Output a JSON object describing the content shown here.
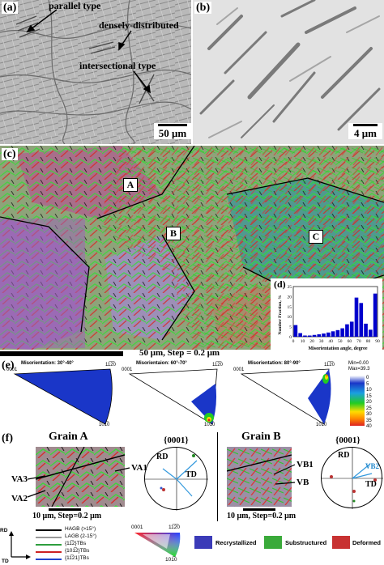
{
  "panel_a": {
    "label": "(a)",
    "annotations": [
      "parallel type",
      "densely-distributed",
      "intersectional type"
    ],
    "scale": "50 μm"
  },
  "panel_b": {
    "label": "(b)",
    "scale": "4 μm"
  },
  "panel_c": {
    "label": "(c)",
    "regions": [
      "A",
      "B",
      "C"
    ],
    "scale": "50 μm, Step = 0.2 μm"
  },
  "panel_d": {
    "label": "(d)",
    "chart_data": {
      "type": "bar",
      "xlabel": "Misorientation angle, degree",
      "ylabel": "Number Fraction, %",
      "x_ticks": [
        0,
        10,
        20,
        30,
        40,
        50,
        60,
        70,
        80,
        90
      ],
      "y_ticks": [
        0,
        5,
        10,
        15,
        20,
        25
      ],
      "ylim": [
        0,
        25
      ],
      "xlim": [
        0,
        90
      ],
      "color": "#0000cc",
      "bins": [
        5,
        10,
        15,
        20,
        25,
        30,
        35,
        40,
        45,
        50,
        55,
        60,
        65,
        70,
        75,
        80,
        85,
        90
      ],
      "values": [
        5.8,
        1.8,
        0.6,
        0.6,
        0.9,
        1.2,
        1.6,
        2.1,
        2.7,
        3.3,
        4.2,
        6.2,
        7.5,
        19.5,
        16.8,
        6.5,
        3.5,
        21.5
      ]
    }
  },
  "panel_e": {
    "label": "(e)",
    "plots": [
      {
        "title": "Misorientation: 30°-40°",
        "c0001": "0001",
        "c1120": "11̅2̅0",
        "c1010": "101̅0"
      },
      {
        "title": "Misorientaion: 60°-70°",
        "c0001": "0001",
        "c1120": "11̅2̅0",
        "c1010": "101̅0"
      },
      {
        "title": "Misorientation: 80°-90°",
        "c0001": "0001",
        "c1120": "11̅2̅0",
        "c1010": "101̅0"
      }
    ],
    "colorbar": {
      "min_label": "Min=0.00",
      "max_label": "Max=39.3",
      "ticks": [
        "0",
        "5",
        "10",
        "15",
        "20",
        "25",
        "30",
        "35",
        "40"
      ]
    }
  },
  "panel_f": {
    "label": "(f)",
    "grain_a": {
      "title": "Grain A",
      "pole_title": "{0001}",
      "variants": [
        "VA1",
        "VA2",
        "VA3"
      ],
      "rd": "RD",
      "td": "TD",
      "scale": "10 μm, Step=0.2 μm"
    },
    "grain_b": {
      "title": "Grain B",
      "pole_title": "{0001}",
      "variants": [
        "VB1",
        "VB2",
        "VB"
      ],
      "rd": "RD",
      "td": "TD",
      "scale": "10 μm, Step=0.2 μm"
    }
  },
  "legend": {
    "axis_rd": "RD",
    "axis_td": "TD",
    "lines": [
      {
        "label": "HAGB (>15°)",
        "color": "#000000"
      },
      {
        "label": "LAGB (2-15°)",
        "color": "#999999"
      },
      {
        "label": "{11̅2}TBs",
        "color": "#2e9e3e"
      },
      {
        "label": "{101̅2}TBs",
        "color": "#cc2222"
      },
      {
        "label": "{11̅21}TBs",
        "color": "#2244cc"
      }
    ],
    "ipf_labels": [
      "0001",
      "11̅2̅0",
      "101̅0"
    ],
    "components": [
      {
        "label": "Recrystallized",
        "color": "#3b3bb8"
      },
      {
        "label": "Substructured",
        "color": "#3aaa3a"
      },
      {
        "label": "Deformed",
        "color": "#c83232"
      }
    ]
  }
}
